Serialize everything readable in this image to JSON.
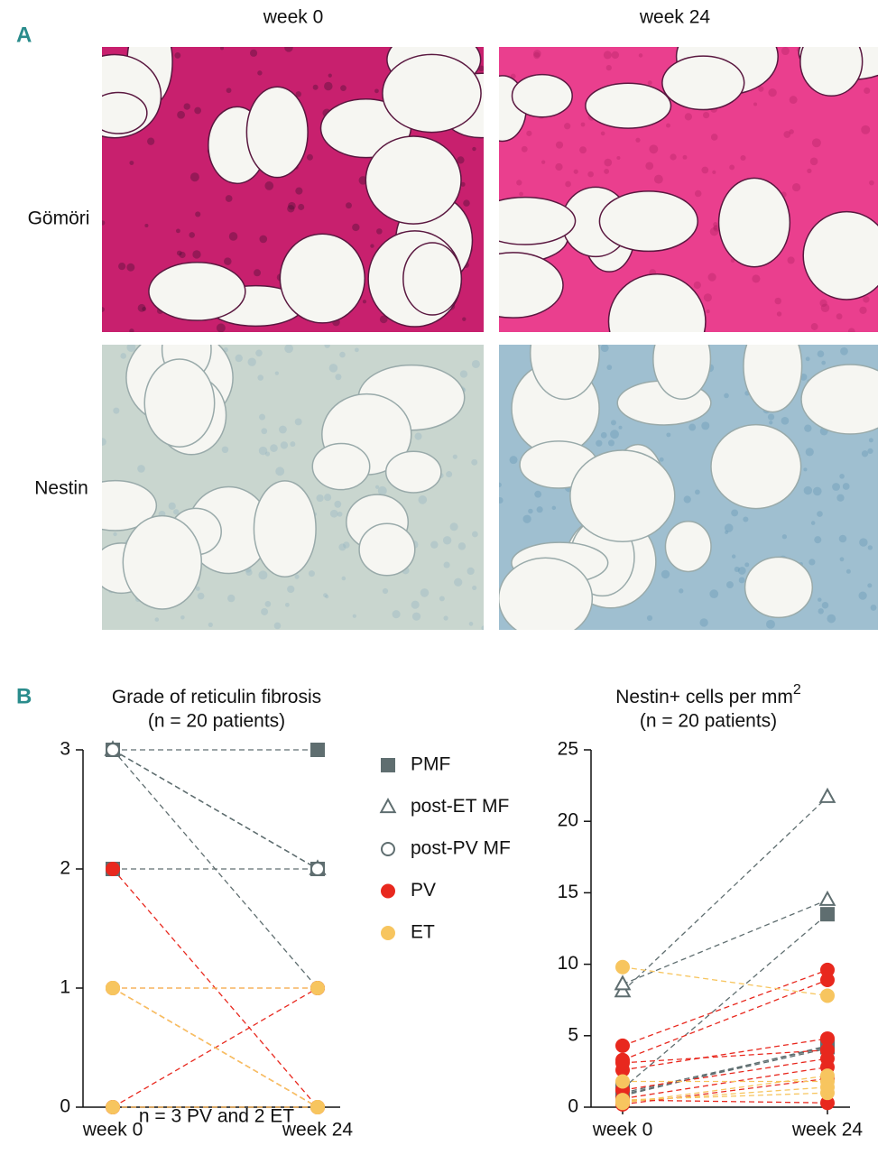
{
  "panel_a": {
    "label": "A",
    "columns": [
      "week 0",
      "week 24"
    ],
    "rows": [
      "Gömöri",
      "Nestin"
    ]
  },
  "panel_b": {
    "label": "B"
  },
  "chart_data": [
    {
      "type": "slope",
      "title": "Grade of reticulin fibrosis",
      "subtitle": "(n = 20 patients)",
      "categories": [
        "week 0",
        "week 24"
      ],
      "ylim": [
        0,
        3
      ],
      "yticks": [
        0,
        1,
        2,
        3
      ],
      "annotation": "n = 3 PV and 2 ET",
      "series": [
        {
          "name": "PMF",
          "color": "#5f6e70",
          "marker": "square",
          "filled": true,
          "values": [
            [
              3,
              3
            ],
            [
              2,
              2
            ]
          ]
        },
        {
          "name": "post-ET MF",
          "color": "#5f6e70",
          "marker": "triangle",
          "filled": false,
          "values": [
            [
              3,
              2
            ],
            [
              3,
              2
            ],
            [
              3,
              2
            ]
          ]
        },
        {
          "name": "post-PV MF",
          "color": "#5f6e70",
          "marker": "circle",
          "filled": false,
          "values": [
            [
              3,
              2
            ],
            [
              3,
              1
            ]
          ]
        },
        {
          "name": "PV",
          "color": "#e8281e",
          "marker": "circle",
          "filled": true,
          "values": [
            [
              2,
              0
            ],
            [
              1,
              1
            ],
            [
              1,
              0
            ],
            [
              1,
              0
            ],
            [
              0,
              1
            ],
            [
              0,
              0
            ]
          ]
        },
        {
          "name": "ET",
          "color": "#f7c55f",
          "marker": "circle",
          "filled": true,
          "values": [
            [
              1,
              1
            ],
            [
              1,
              0
            ],
            [
              1,
              0
            ],
            [
              0,
              0
            ]
          ]
        }
      ]
    },
    {
      "type": "slope",
      "title": "Nestin+ cells per mm",
      "title_superscript": "2",
      "subtitle": "(n = 20 patients)",
      "categories": [
        "week 0",
        "week 24"
      ],
      "ylim": [
        0,
        25
      ],
      "yticks": [
        0,
        5,
        10,
        15,
        20,
        25
      ],
      "series": [
        {
          "color": "#5f6e70",
          "marker": "square",
          "filled": true,
          "values": [
            [
              1.3,
              13.5
            ],
            [
              1.0,
              4.2
            ],
            [
              0.8,
              4.3
            ]
          ]
        },
        {
          "color": "#5f6e70",
          "marker": "triangle",
          "filled": false,
          "values": [
            [
              8.1,
              21.7
            ],
            [
              8.6,
              14.5
            ]
          ]
        },
        {
          "color": "#5f6e70",
          "marker": "circle",
          "filled": false,
          "values": [
            [
              0.9,
              4.1
            ]
          ]
        },
        {
          "color": "#e8281e",
          "marker": "circle",
          "filled": true,
          "values": [
            [
              4.3,
              9.6
            ],
            [
              3.3,
              8.9
            ],
            [
              2.6,
              4.8
            ],
            [
              3.1,
              4.0
            ],
            [
              1.2,
              3.4
            ],
            [
              0.6,
              2.8
            ],
            [
              0.5,
              0.3
            ],
            [
              0.2,
              2.0
            ]
          ]
        },
        {
          "color": "#f7c55f",
          "marker": "circle",
          "filled": true,
          "values": [
            [
              9.8,
              7.8
            ],
            [
              1.8,
              1.8
            ],
            [
              0.5,
              1.0
            ],
            [
              0.3,
              2.2
            ],
            [
              0.4,
              1.4
            ]
          ]
        }
      ]
    }
  ]
}
